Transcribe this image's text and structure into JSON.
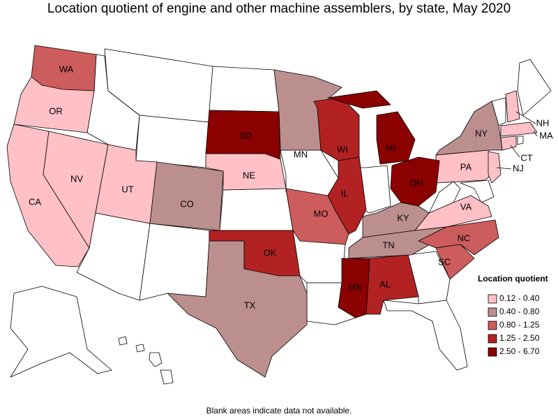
{
  "title": "Location quotient of engine and other machine assemblers, by state, May 2020",
  "legend": {
    "title": "Location quotient",
    "bins": [
      {
        "label": "0.12 - 0.40",
        "color": "#ffc0c6",
        "states": [
          "OR",
          "CA",
          "NV",
          "UT",
          "NE",
          "PA",
          "VA",
          "NH",
          "MA",
          "CT",
          "NJ"
        ]
      },
      {
        "label": "0.40 - 0.80",
        "color": "#bc8f8f",
        "states": [
          "CO",
          "TX",
          "MN",
          "NY",
          "KY",
          "TN"
        ]
      },
      {
        "label": "0.80 - 1.25",
        "color": "#cd5c5c",
        "states": [
          "WA",
          "MO",
          "NC",
          "SC"
        ]
      },
      {
        "label": "1.25 - 2.50",
        "color": "#b22222",
        "states": [
          "WI",
          "IL",
          "OK",
          "AL"
        ]
      },
      {
        "label": "2.50 - 6.70",
        "color": "#8b0000",
        "states": [
          "SD",
          "MI",
          "OH",
          "MS"
        ]
      }
    ]
  },
  "footnote": "Blank areas indicate data not available."
}
